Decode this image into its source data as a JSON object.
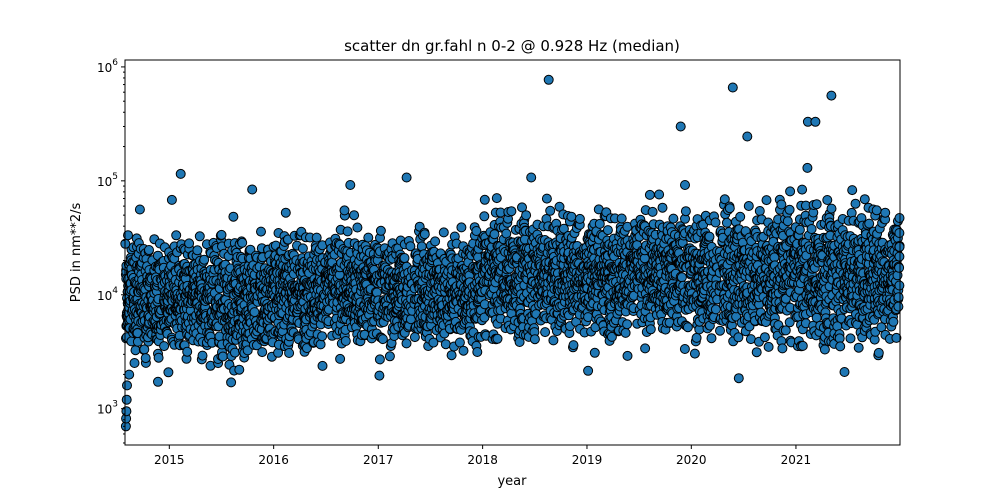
{
  "chart_data": {
    "type": "scatter",
    "title": "scatter dn gr.fahl n 0-2 @ 0.928 Hz (median)",
    "xlabel": "year",
    "ylabel": "PSD in nm**2/s",
    "x_scale": "time",
    "y_scale": "log",
    "xlim": [
      "2014-07-30",
      "2021-12-31"
    ],
    "ylim": [
      480,
      1150000
    ],
    "x_ticks": [
      {
        "date": "2015-01-01",
        "label": "2015"
      },
      {
        "date": "2016-01-01",
        "label": "2016"
      },
      {
        "date": "2017-01-01",
        "label": "2017"
      },
      {
        "date": "2018-01-01",
        "label": "2018"
      },
      {
        "date": "2019-01-01",
        "label": "2019"
      },
      {
        "date": "2020-01-01",
        "label": "2020"
      },
      {
        "date": "2021-01-01",
        "label": "2021"
      }
    ],
    "y_ticks": [
      {
        "value": 1000,
        "base": "10",
        "exp": "3"
      },
      {
        "value": 10000,
        "base": "10",
        "exp": "4"
      },
      {
        "value": 100000,
        "base": "10",
        "exp": "5"
      },
      {
        "value": 1000000,
        "base": "10",
        "exp": "6"
      }
    ],
    "marker_color": "#1f77b4",
    "marker_edge_color": "#000000",
    "grid": false,
    "legend": "none",
    "outliers": [
      {
        "x": "2015-02-10",
        "y": 115000
      },
      {
        "x": "2015-01-10",
        "y": 68000
      },
      {
        "x": "2014-09-20",
        "y": 56000
      },
      {
        "x": "2015-10-18",
        "y": 84000
      },
      {
        "x": "2016-09-05",
        "y": 55000
      },
      {
        "x": "2016-09-25",
        "y": 92000
      },
      {
        "x": "2017-04-10",
        "y": 107000
      },
      {
        "x": "2018-06-20",
        "y": 107000
      },
      {
        "x": "2018-08-20",
        "y": 770000
      },
      {
        "x": "2019-11-25",
        "y": 300000
      },
      {
        "x": "2019-12-10",
        "y": 92000
      },
      {
        "x": "2020-05-25",
        "y": 660000
      },
      {
        "x": "2020-07-15",
        "y": 245000
      },
      {
        "x": "2021-02-12",
        "y": 330000
      },
      {
        "x": "2021-03-10",
        "y": 330000
      },
      {
        "x": "2021-05-05",
        "y": 560000
      },
      {
        "x": "2021-02-10",
        "y": 130000
      },
      {
        "x": "2014-07-31",
        "y": 28000
      },
      {
        "x": "2014-08-02",
        "y": 700
      },
      {
        "x": "2014-08-03",
        "y": 820
      },
      {
        "x": "2014-08-04",
        "y": 950
      },
      {
        "x": "2014-08-05",
        "y": 1200
      },
      {
        "x": "2014-08-06",
        "y": 1600
      },
      {
        "x": "2015-08-05",
        "y": 1700
      },
      {
        "x": "2017-01-05",
        "y": 1950
      },
      {
        "x": "2019-01-05",
        "y": 2150
      },
      {
        "x": "2020-06-15",
        "y": 1850
      },
      {
        "x": "2021-06-20",
        "y": 2100
      }
    ],
    "bulk": {
      "note": "dense cloud of observations",
      "regions": [
        {
          "from": "2014-08-01",
          "to": "2015-12-31",
          "median": 9000,
          "spread_decades": 0.45
        },
        {
          "from": "2016-01-01",
          "to": "2017-12-31",
          "median": 11000,
          "spread_decades": 0.42
        },
        {
          "from": "2018-01-01",
          "to": "2019-12-31",
          "median": 15000,
          "spread_decades": 0.45
        },
        {
          "from": "2020-01-01",
          "to": "2021-12-31",
          "median": 15000,
          "spread_decades": 0.5
        }
      ]
    }
  }
}
